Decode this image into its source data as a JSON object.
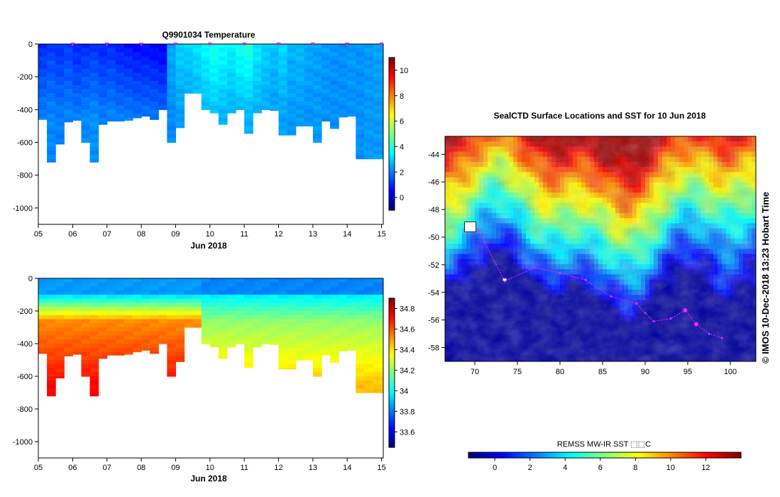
{
  "chart_data": [
    {
      "type": "heatmap",
      "title": "Q9901034  Temperature",
      "xlabel": "Jun 2018",
      "ylabel": "",
      "x_ticks": [
        "05",
        "06",
        "07",
        "08",
        "09",
        "10",
        "11",
        "12",
        "13",
        "14",
        "15"
      ],
      "x_range_day": [
        5,
        15.05
      ],
      "y_ticks": [
        0,
        -200,
        -400,
        -600,
        -800,
        -1000
      ],
      "ylim": [
        -1100,
        0
      ],
      "profile_days": [
        5.0,
        5.25,
        5.5,
        5.75,
        6.0,
        6.25,
        6.5,
        6.75,
        7.0,
        7.25,
        7.5,
        7.75,
        8.0,
        8.25,
        8.5,
        8.75,
        9.0,
        9.25,
        9.5,
        9.75,
        10.0,
        10.25,
        10.5,
        10.75,
        11.0,
        11.25,
        11.5,
        11.75,
        12.0,
        12.25,
        12.5,
        12.75,
        13.0,
        13.25,
        13.5,
        13.75,
        14.0,
        14.25,
        14.5,
        14.75,
        15.05
      ],
      "profile_max_depth": [
        -460,
        -720,
        -610,
        -475,
        -465,
        -600,
        -720,
        -490,
        -470,
        -470,
        -465,
        -450,
        -440,
        -460,
        -400,
        -600,
        -510,
        -300,
        -300,
        -400,
        -420,
        -490,
        -420,
        -400,
        -545,
        -420,
        -400,
        -405,
        -555,
        -555,
        -500,
        -500,
        -600,
        -470,
        -515,
        -445,
        -440,
        -700,
        -700,
        -700
      ],
      "profile_temp_surface": [
        1.0,
        1.2,
        1.0,
        1.2,
        0.9,
        1.0,
        1.1,
        0.9,
        1.0,
        0.8,
        0.7,
        0.6,
        0.6,
        0.5,
        0.4,
        2.5,
        3.0,
        3.0,
        3.2,
        3.5,
        3.8,
        3.6,
        3.4,
        3.7,
        3.9,
        3.3,
        3.0,
        2.8,
        3.1,
        2.6,
        2.7,
        2.5,
        2.4,
        2.3,
        2.2,
        2.2,
        2.3,
        2.2,
        2.3,
        2.4
      ],
      "profile_temp_deep": [
        2.0,
        2.1,
        2.0,
        2.1,
        2.0,
        2.1,
        2.2,
        2.0,
        2.1,
        2.0,
        2.0,
        1.9,
        1.9,
        1.9,
        1.8,
        2.1,
        2.3,
        2.3,
        2.4,
        2.6,
        2.7,
        2.6,
        2.5,
        2.6,
        2.6,
        2.5,
        2.4,
        2.3,
        2.4,
        2.3,
        2.3,
        2.2,
        2.3,
        2.2,
        2.2,
        2.2,
        2.2,
        2.2,
        2.3,
        2.3
      ],
      "profile_markers_day": [
        6.0,
        7.0,
        8.0,
        9.0,
        10.0,
        11.0,
        12.0,
        13.0,
        14.0,
        15.0
      ],
      "colorbar": {
        "ticks": [
          10,
          8,
          6,
          4,
          2,
          0
        ],
        "range": [
          -1,
          11
        ]
      }
    },
    {
      "type": "heatmap",
      "title": "",
      "xlabel": "Jun 2018",
      "ylabel": "",
      "x_ticks": [
        "05",
        "06",
        "07",
        "08",
        "09",
        "10",
        "11",
        "12",
        "13",
        "14",
        "15"
      ],
      "x_range_day": [
        5,
        15.05
      ],
      "y_ticks": [
        0,
        -200,
        -400,
        -600,
        -800,
        -1000
      ],
      "ylim": [
        -1100,
        0
      ],
      "profile_days": [
        5.0,
        5.25,
        5.5,
        5.75,
        6.0,
        6.25,
        6.5,
        6.75,
        7.0,
        7.25,
        7.5,
        7.75,
        8.0,
        8.25,
        8.5,
        8.75,
        9.0,
        9.25,
        9.5,
        9.75,
        10.0,
        10.25,
        10.5,
        10.75,
        11.0,
        11.25,
        11.5,
        11.75,
        12.0,
        12.25,
        12.5,
        12.75,
        13.0,
        13.25,
        13.5,
        13.75,
        14.0,
        14.25,
        14.5,
        14.75,
        15.05
      ],
      "profile_max_depth": [
        -460,
        -720,
        -610,
        -475,
        -465,
        -600,
        -720,
        -490,
        -470,
        -470,
        -465,
        -450,
        -440,
        -460,
        -400,
        -600,
        -510,
        -300,
        -300,
        -400,
        -420,
        -490,
        -420,
        -400,
        -545,
        -420,
        -400,
        -405,
        -555,
        -555,
        -500,
        -500,
        -600,
        -470,
        -515,
        -445,
        -440,
        -700,
        -700,
        -700
      ],
      "colorbar": {
        "ticks": [
          34.8,
          34.6,
          34.4,
          34.2,
          34,
          33.8,
          33.6
        ],
        "range": [
          33.45,
          34.9
        ]
      }
    },
    {
      "type": "heatmap",
      "title": "SealCTD Surface Locations and SST for 10 Jun 2018",
      "xlabel": "",
      "ylabel": "",
      "x_ticks": [
        70,
        75,
        80,
        85,
        90,
        95,
        100
      ],
      "xlim": [
        66.5,
        103
      ],
      "y_ticks": [
        -44,
        -46,
        -48,
        -50,
        -52,
        -54,
        -56,
        -58
      ],
      "ylim": [
        -59,
        -42.7
      ],
      "track_points": [
        [
          68.9,
          -49.3
        ],
        [
          70.5,
          -49.6
        ],
        [
          73.5,
          -53.2
        ],
        [
          77,
          -52.2
        ],
        [
          80,
          -52.6
        ],
        [
          83,
          -53.1
        ],
        [
          86,
          -54.3
        ],
        [
          89,
          -54.8
        ],
        [
          90,
          -55.5
        ],
        [
          91,
          -56.1
        ],
        [
          93,
          -55.9
        ],
        [
          94.7,
          -55.3
        ],
        [
          96,
          -56.3
        ],
        [
          97.5,
          -57
        ],
        [
          99,
          -57.3
        ]
      ],
      "colorbar_label": "REMSS MW-IR SST ⬚⬚C",
      "colorbar": {
        "ticks": [
          0,
          2,
          4,
          6,
          8,
          10,
          12
        ],
        "range": [
          -1.5,
          14
        ]
      },
      "stamp": "©  IMOS 10-Dec-2018 13:23 Hobart Time"
    }
  ]
}
